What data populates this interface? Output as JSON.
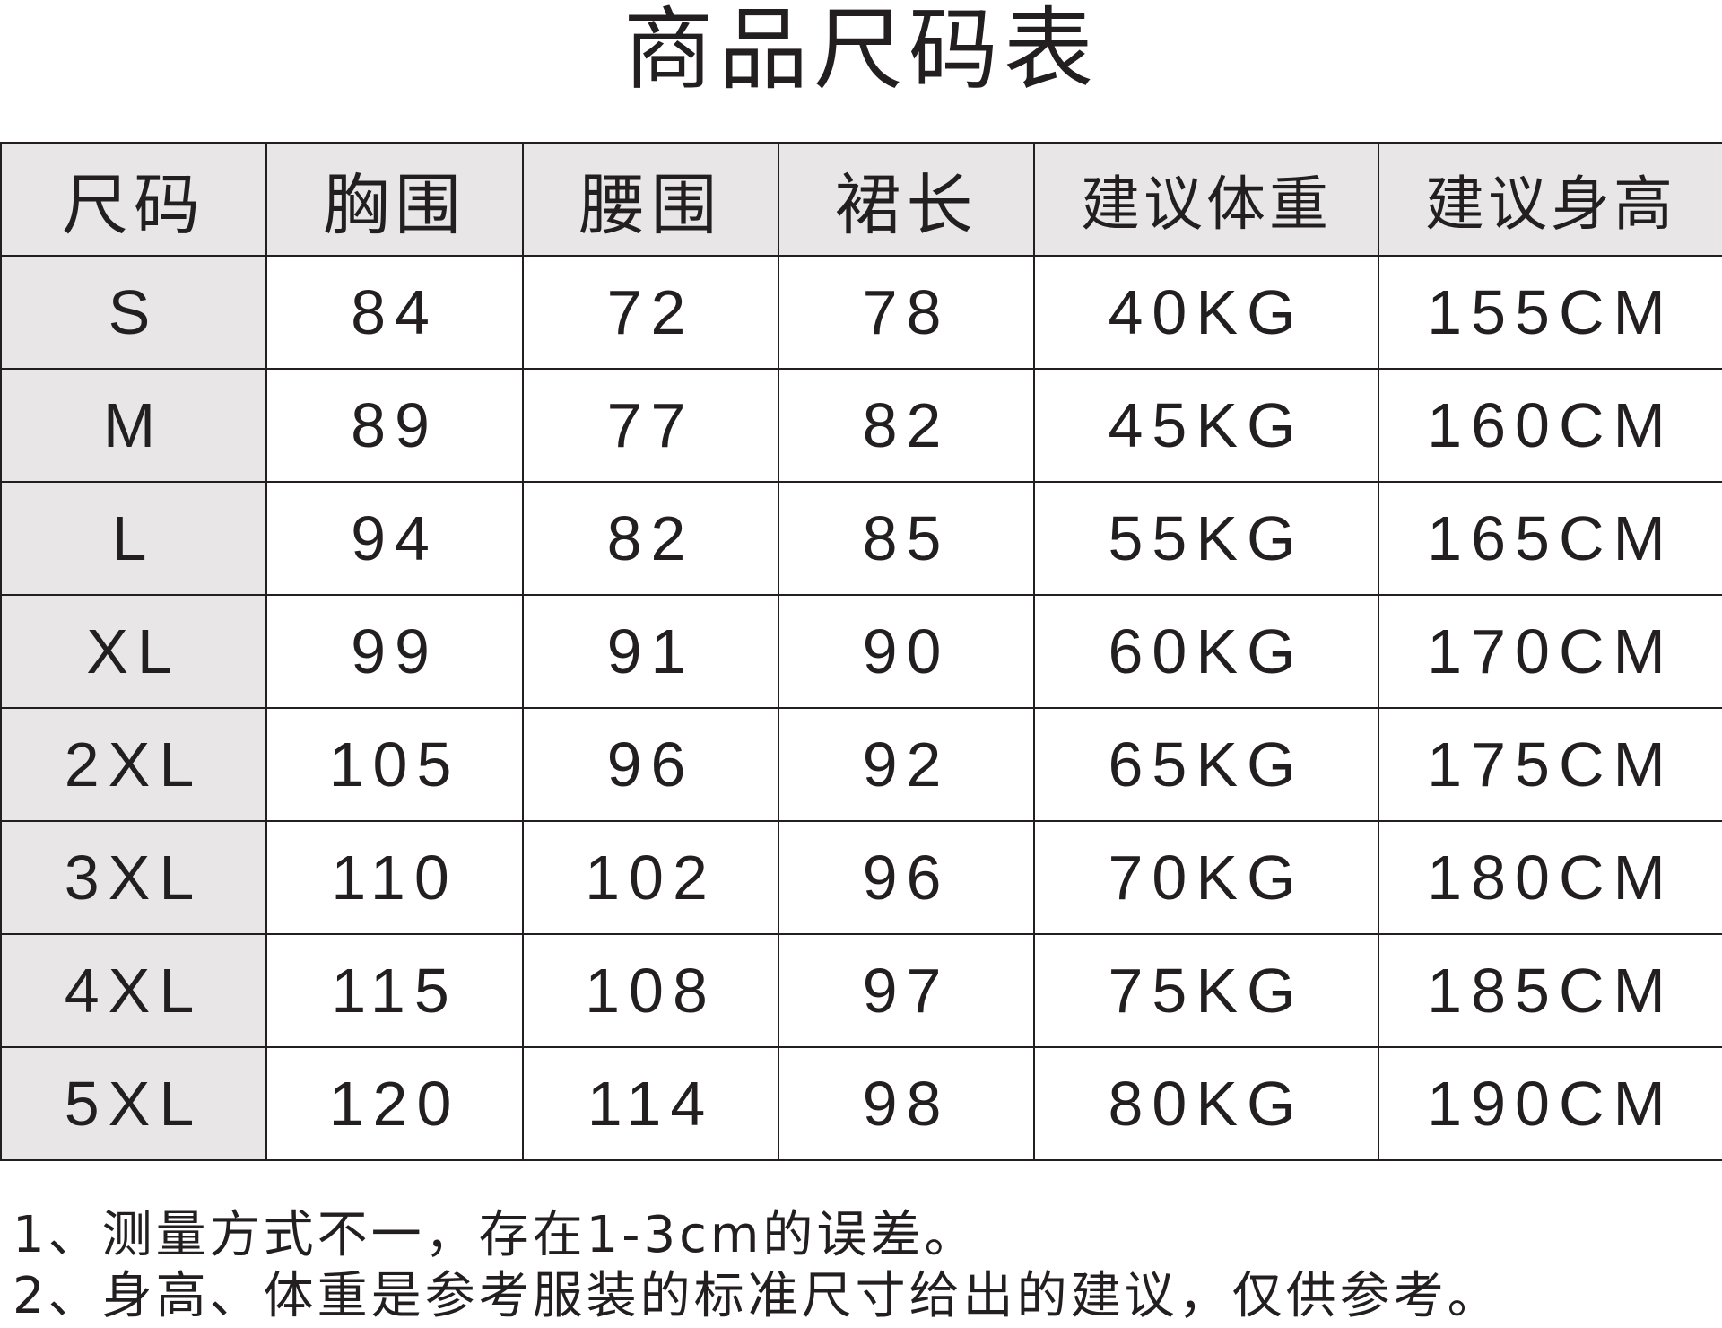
{
  "title": "商品尺码表",
  "table": {
    "headers": [
      "尺码",
      "胸围",
      "腰围",
      "裙长",
      "建议体重",
      "建议身高"
    ],
    "rows": [
      [
        "S",
        "84",
        "72",
        "78",
        "40KG",
        "155CM"
      ],
      [
        "M",
        "89",
        "77",
        "82",
        "45KG",
        "160CM"
      ],
      [
        "L",
        "94",
        "82",
        "85",
        "55KG",
        "165CM"
      ],
      [
        "XL",
        "99",
        "91",
        "90",
        "60KG",
        "170CM"
      ],
      [
        "2XL",
        "105",
        "96",
        "92",
        "65KG",
        "175CM"
      ],
      [
        "3XL",
        "110",
        "102",
        "96",
        "70KG",
        "180CM"
      ],
      [
        "4XL",
        "115",
        "108",
        "97",
        "75KG",
        "185CM"
      ],
      [
        "5XL",
        "120",
        "114",
        "98",
        "80KG",
        "190CM"
      ]
    ]
  },
  "notes": [
    "1、测量方式不一，存在1-3cm的误差。",
    "2、身高、体重是参考服装的标准尺寸给出的建议，仅供参考。"
  ],
  "colors": {
    "header_bg": "#e8e6e7",
    "text": "#231f20"
  }
}
